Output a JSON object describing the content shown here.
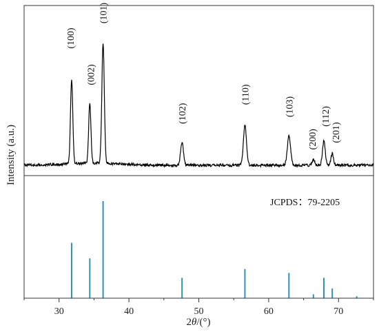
{
  "chart_data": {
    "type": "line",
    "xlabel": "2θ/(°)",
    "ylabel": "Intensity (a.u.)",
    "xlim": [
      25,
      75
    ],
    "xticks": [
      30,
      40,
      50,
      60,
      70
    ],
    "xtick_labels": [
      "30",
      "40",
      "50",
      "60",
      "70"
    ],
    "colors": {
      "pattern": "#000000",
      "reference": "#2f8fc7",
      "frame": "#333333"
    },
    "pattern": {
      "baseline": 0.0,
      "peaks": [
        {
          "hkl": "(100)",
          "x": 31.8,
          "y": 0.7
        },
        {
          "hkl": "(002)",
          "x": 34.4,
          "y": 0.5
        },
        {
          "hkl": "(101)",
          "x": 36.3,
          "y": 1.0
        },
        {
          "hkl": "(102)",
          "x": 47.6,
          "y": 0.19
        },
        {
          "hkl": "(110)",
          "x": 56.6,
          "y": 0.33
        },
        {
          "hkl": "(103)",
          "x": 62.9,
          "y": 0.24
        },
        {
          "hkl": "(200)",
          "x": 66.4,
          "y": 0.05
        },
        {
          "hkl": "(112)",
          "x": 67.9,
          "y": 0.2
        },
        {
          "hkl": "(201)",
          "x": 69.1,
          "y": 0.1
        }
      ]
    },
    "reference": {
      "label": "JCPDS：79-2205",
      "lines": [
        {
          "x": 31.8,
          "y": 0.57
        },
        {
          "x": 34.4,
          "y": 0.41
        },
        {
          "x": 36.3,
          "y": 1.0
        },
        {
          "x": 47.6,
          "y": 0.21
        },
        {
          "x": 56.6,
          "y": 0.3
        },
        {
          "x": 62.9,
          "y": 0.26
        },
        {
          "x": 66.4,
          "y": 0.04
        },
        {
          "x": 67.9,
          "y": 0.21
        },
        {
          "x": 69.1,
          "y": 0.1
        },
        {
          "x": 72.6,
          "y": 0.02
        }
      ]
    }
  }
}
